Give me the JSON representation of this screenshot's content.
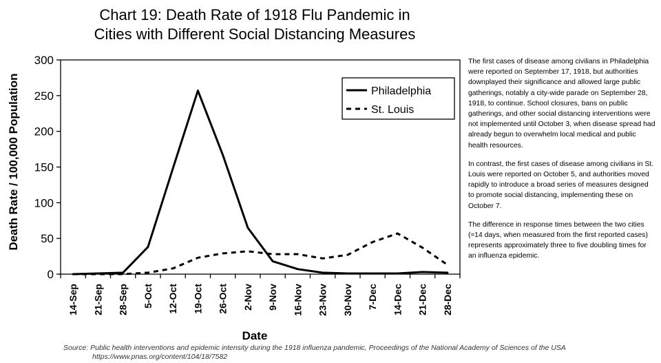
{
  "header": {
    "title_line1": "Chart 19: Death Rate of 1918 Flu Pandemic in",
    "title_line2": "Cities with Different Social Distancing Measures"
  },
  "chart_data": {
    "type": "line",
    "title": "Chart 19: Death Rate of 1918 Flu Pandemic in Cities with Different Social Distancing Measures",
    "xlabel": "Date",
    "ylabel": "Death Rate / 100,000 Population",
    "ylim": [
      0,
      300
    ],
    "yticks": [
      "0",
      "50",
      "100",
      "150",
      "200",
      "250",
      "300"
    ],
    "grid": false,
    "legend_position": "top-right",
    "categories": [
      "14-Sep",
      "21-Sep",
      "28-Sep",
      "5-Oct",
      "12-Oct",
      "19-Oct",
      "26-Oct",
      "2-Nov",
      "9-Nov",
      "16-Nov",
      "23-Nov",
      "30-Nov",
      "7-Dec",
      "14-Dec",
      "21-Dec",
      "28-Dec"
    ],
    "series": [
      {
        "name": "Philadelphia",
        "style": "solid",
        "color": "#000000",
        "values": [
          0,
          1,
          2,
          38,
          148,
          257,
          167,
          65,
          18,
          7,
          2,
          1,
          1,
          1,
          3,
          2
        ]
      },
      {
        "name": "St. Louis",
        "style": "dashed",
        "color": "#000000",
        "values": [
          0,
          0,
          0,
          2,
          8,
          23,
          29,
          32,
          28,
          28,
          22,
          27,
          45,
          57,
          37,
          13
        ]
      }
    ]
  },
  "notes": {
    "p1": "The first cases of disease among civilians in Philadelphia were reported on September 17, 1918, but authorities downplayed their significance and allowed large public gatherings, notably a city-wide parade on September 28, 1918, to continue. School closures, bans on public gatherings, and other social distancing interventions were not implemented until October 3, when disease spread had already begun to overwhelm local medical and public health resources.",
    "p2": "In contrast, the first cases of disease among civilians in St. Louis were reported on October 5, and authorities moved rapidly to introduce a broad series of measures designed to promote social distancing, implementing these on October 7.",
    "p3": "The difference in response times between the two cities (≈14 days, when measured from the first reported cases) represents approximately three to five doubling times for an influenza epidemic."
  },
  "source": {
    "line1": "Source: Public health interventions and epidemic intensity during the 1918 influenza pandemic, Proceedings of the National Academy of Sciences of the USA",
    "line2": "https://www.pnas.org/content/104/18/7582"
  }
}
